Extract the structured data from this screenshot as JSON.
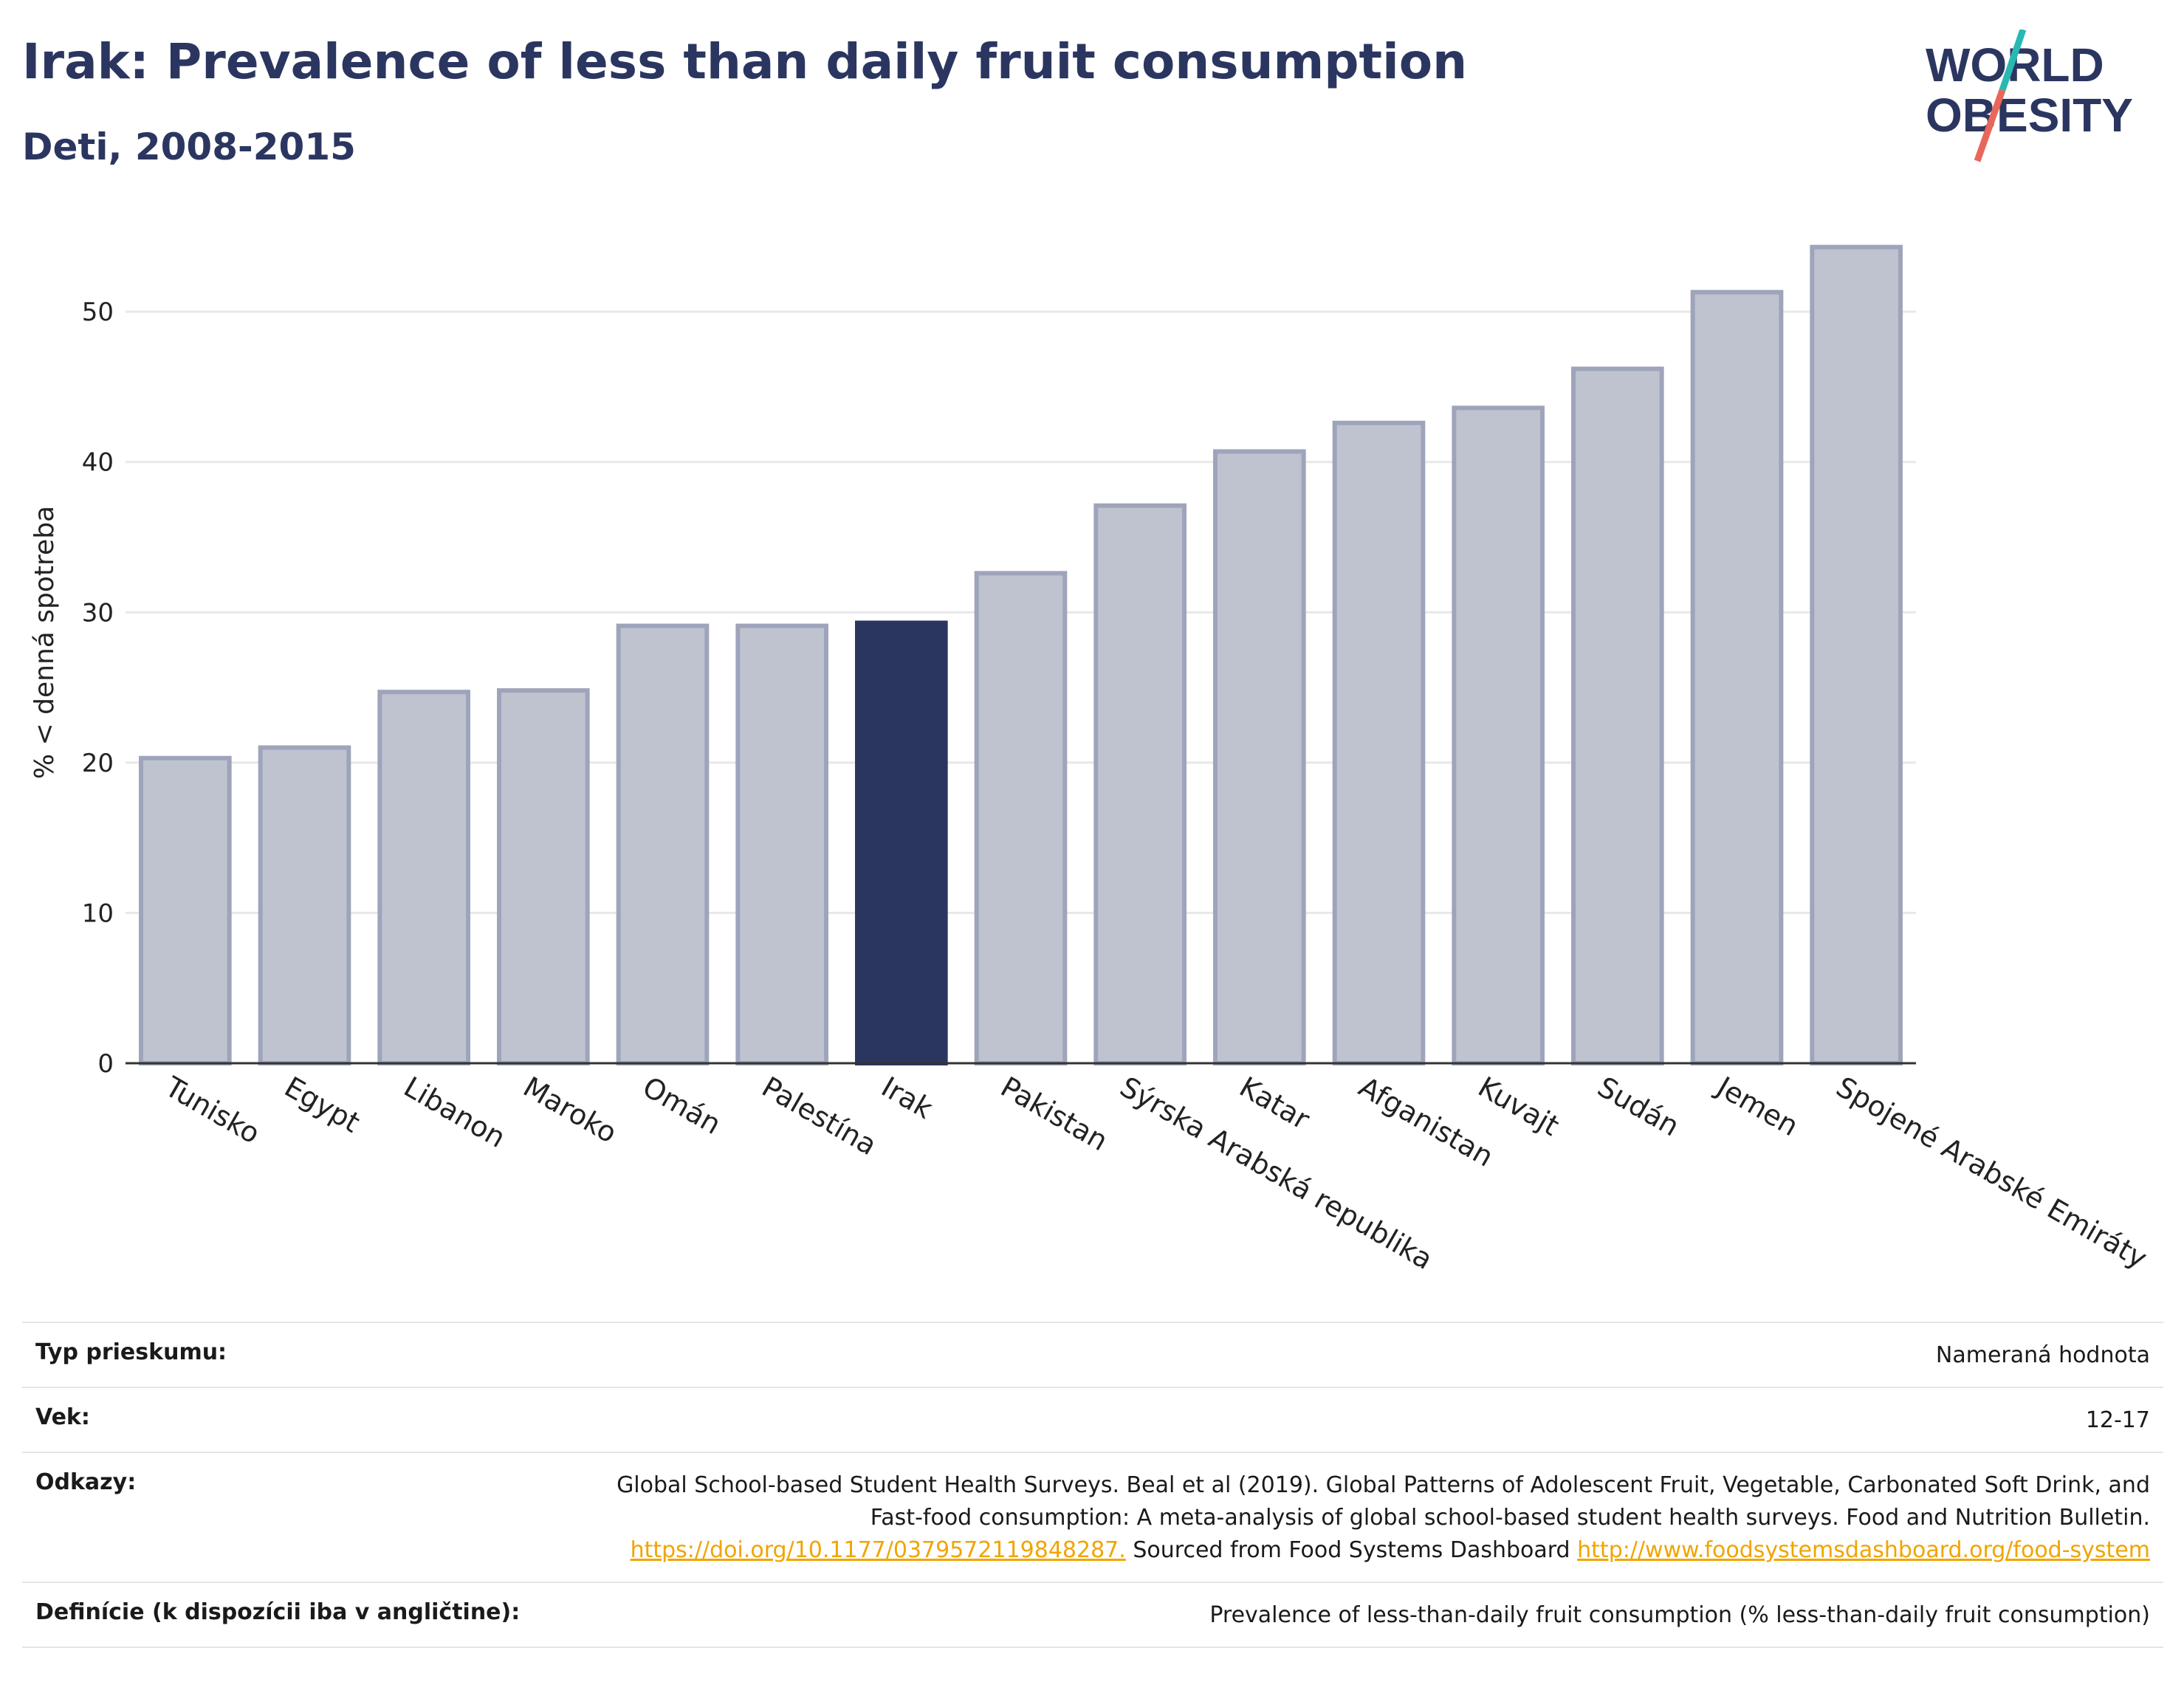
{
  "header": {
    "title": "Irak: Prevalence of less than daily fruit consumption",
    "subtitle": "Deti, 2008-2015"
  },
  "logo": {
    "line1": "WORLD",
    "line2": "OBESITY",
    "colors": {
      "text": "#2b3660",
      "slash_top": "#2ab8b3",
      "slash_bottom": "#e8675a"
    }
  },
  "chart_data": {
    "type": "bar",
    "ylabel": "% < denná spotreba",
    "xlabel": "",
    "ylim": [
      0,
      56
    ],
    "yticks": [
      0,
      10,
      20,
      30,
      40,
      50
    ],
    "grid": true,
    "categories": [
      "Tunisko",
      "Egypt",
      "Libanon",
      "Maroko",
      "Omán",
      "Palestína",
      "Irak",
      "Pakistan",
      "Sýrska Arabská republika",
      "Katar",
      "Afganistan",
      "Kuvajt",
      "Sudán",
      "Jemen",
      "Spojené Arabské Emiráty"
    ],
    "values": [
      20.3,
      21.0,
      24.7,
      24.8,
      29.1,
      29.1,
      29.3,
      32.6,
      37.1,
      40.7,
      42.6,
      43.6,
      46.2,
      51.3,
      54.3
    ],
    "highlight": "Irak",
    "colors": {
      "bar": "#bfc3d0",
      "bar_border": "#9ea4ba",
      "highlight": "#2b3660",
      "grid": "#e8e8e8",
      "axis": "#333333"
    }
  },
  "info": {
    "rows": [
      {
        "label": "Typ prieskumu:",
        "value": "Nameraná hodnota"
      },
      {
        "label": "Vek:",
        "value": "12-17"
      },
      {
        "label": "Definície (k dispozícii iba v angličtine):",
        "value": "Prevalence of less-than-daily fruit consumption (% less-than-daily fruit consumption)"
      }
    ],
    "references": {
      "label": "Odkazy:",
      "text1": "Global School-based Student Health Surveys. Beal et al (2019). Global Patterns of Adolescent Fruit, Vegetable, Carbonated Soft Drink, and Fast-food consumption: A meta-analysis of global school-based student health surveys. Food and Nutrition Bulletin.",
      "link1": "https://doi.org/10.1177/0379572119848287.",
      "text2": "Sourced from Food Systems Dashboard",
      "link2": "http://www.foodsystemsdashboard.org/food-system"
    }
  }
}
